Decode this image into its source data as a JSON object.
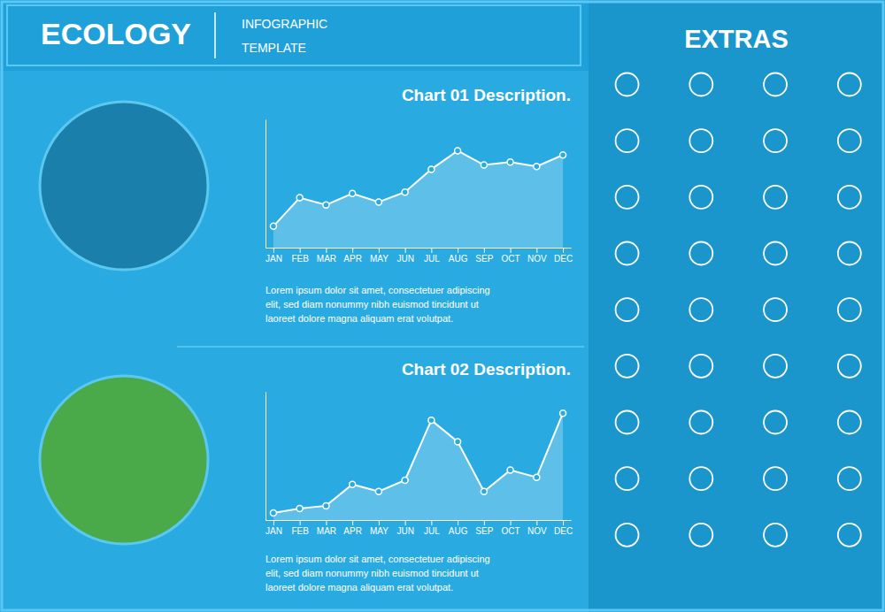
{
  "chart_data": [
    {
      "type": "area",
      "title": "Chart 01 Description.",
      "categories": [
        "JAN",
        "FEB",
        "MAR",
        "APR",
        "MAY",
        "JUN",
        "JUL",
        "AUG",
        "SEP",
        "OCT",
        "NOV",
        "DEC"
      ],
      "values": [
        1.5,
        3.5,
        3.0,
        3.8,
        3.2,
        3.9,
        5.5,
        6.8,
        5.8,
        6.0,
        5.7,
        6.5
      ],
      "color": "#ffffff",
      "marker": "circle",
      "ylim": [
        0,
        9
      ],
      "grid": false,
      "tick_labels": "x",
      "annotations": [
        "ECOLOGY",
        "INFOGRAPHIC",
        "TEMPLATE",
        "EXTRAS",
        "Lorem ipsum dolor sit amet, consectetuer adipiscing\nelit, sed diam nonummy nibh euismod tincidunt ut\nlaoreet dolore magna aliquam erat volutpat."
      ]
    },
    {
      "type": "area",
      "title": "Chart 02 Description.",
      "categories": [
        "JAN",
        "FEB",
        "MAR",
        "APR",
        "MAY",
        "JUN",
        "JUL",
        "AUG",
        "SEP",
        "OCT",
        "NOV",
        "DEC"
      ],
      "values": [
        0.5,
        0.8,
        1.0,
        2.5,
        2.0,
        2.8,
        7.0,
        5.5,
        2.0,
        3.5,
        3.0,
        7.5
      ],
      "color": "#ffffff",
      "marker": "circle",
      "ylim": [
        0,
        9
      ],
      "grid": false,
      "tick_labels": "x",
      "annotations": [
        "Lorem ipsum dolor sit amet, consectetuer adipiscing\nelit, sed diam nonummy nibh euismod tincidunt ut\nlaoreet dolore magna aliquam erat volutpat."
      ]
    }
  ]
}
